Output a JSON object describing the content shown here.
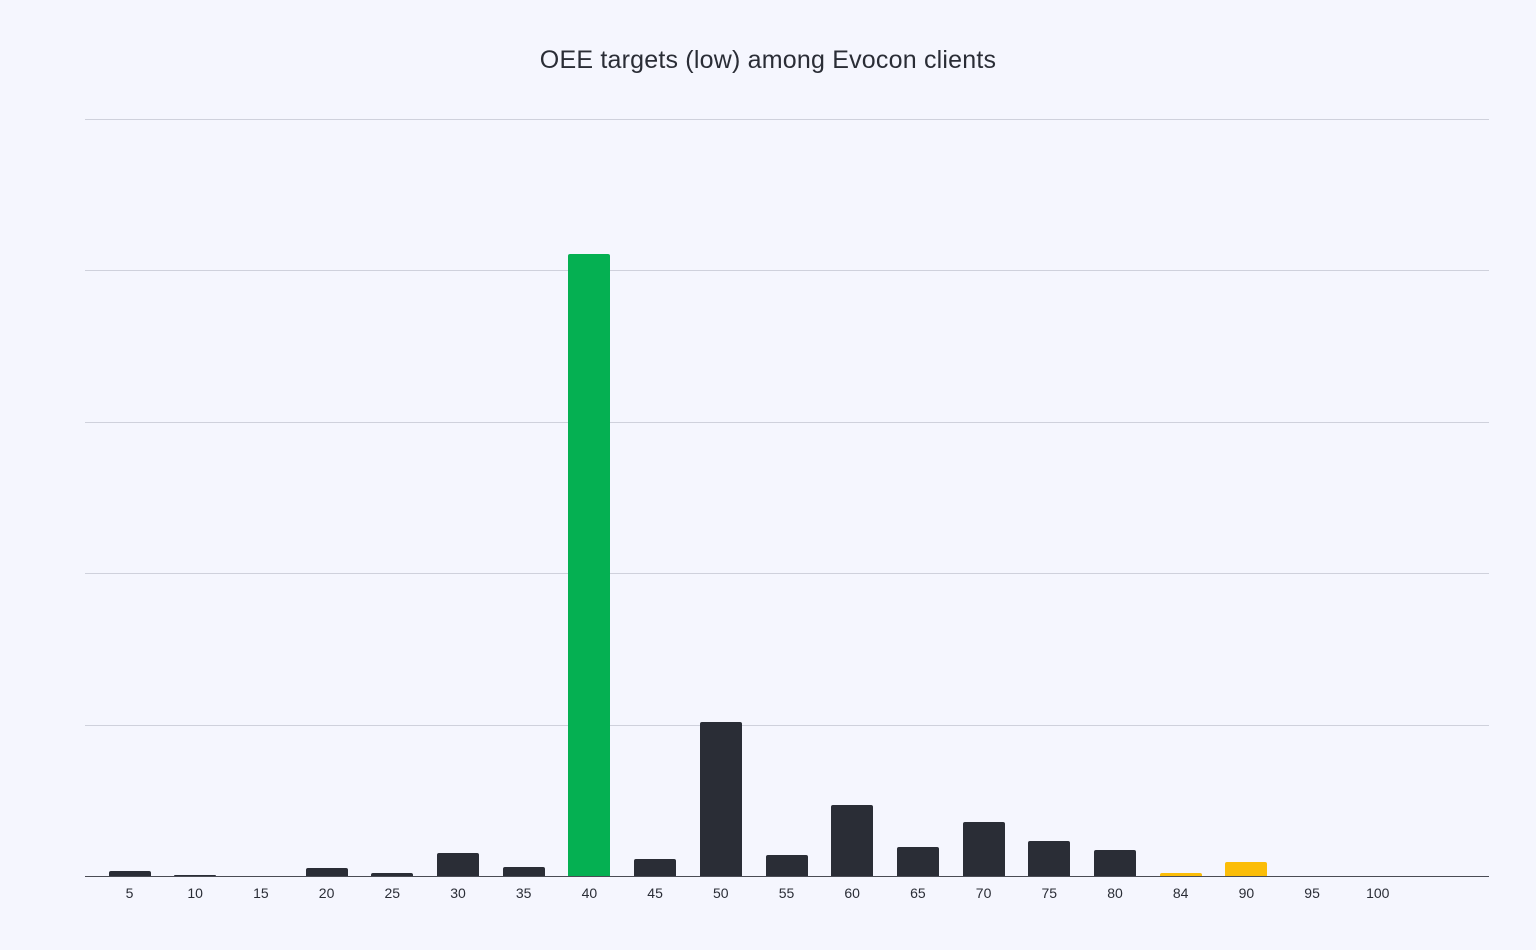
{
  "chart_data": {
    "type": "bar",
    "title": "OEE targets (low) among Evocon clients",
    "xlabel": "",
    "ylabel": "",
    "categories": [
      "5",
      "10",
      "15",
      "20",
      "25",
      "30",
      "35",
      "40",
      "45",
      "50",
      "55",
      "60",
      "65",
      "70",
      "75",
      "80",
      "84",
      "90",
      "95",
      "100"
    ],
    "values": [
      0.3,
      0.1,
      0,
      0.5,
      0.2,
      1.5,
      0.6,
      41.1,
      1.1,
      10.2,
      1.4,
      4.7,
      1.9,
      3.6,
      2.3,
      1.7,
      0.2,
      0.9,
      0,
      0
    ],
    "bar_colors": [
      "#2a2d36",
      "#2a2d36",
      "#2a2d36",
      "#2a2d36",
      "#2a2d36",
      "#2a2d36",
      "#2a2d36",
      "#05b052",
      "#2a2d36",
      "#2a2d36",
      "#2a2d36",
      "#2a2d36",
      "#2a2d36",
      "#2a2d36",
      "#2a2d36",
      "#2a2d36",
      "#fbbd08",
      "#fbbd08",
      "#fbbd08",
      "#fbbd08"
    ],
    "ylim": [
      0,
      50
    ],
    "gridlines": [
      10,
      20,
      30,
      40,
      50
    ],
    "y_tick_labels_visible": false,
    "grid": true,
    "legend": null
  },
  "colors": {
    "background": "#f5f6fe",
    "default_bar": "#2a2d36",
    "highlight_bar": "#05b052",
    "high_target_bar": "#fbbd08",
    "gridline": "#cfd1dc"
  }
}
